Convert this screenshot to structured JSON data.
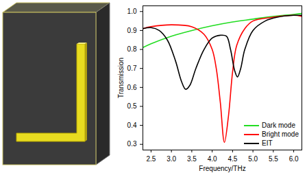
{
  "chart_data": {
    "type": "line",
    "x_label": "Frequency/THz",
    "y_label": "Transmission",
    "xlim": [
      2.3,
      6.2
    ],
    "ylim": [
      0.27,
      1.03
    ],
    "xticks": [
      2.5,
      {
        "value": 3,
        "label": "3.0"
      },
      3.5,
      {
        "value": 4,
        "label": "4.0"
      },
      4.5,
      {
        "value": 5,
        "label": "5.0"
      },
      5.5,
      {
        "value": 6,
        "label": "6.0"
      }
    ],
    "yticks": [
      0.3,
      0.4,
      0.5,
      0.6,
      0.7,
      0.8,
      0.9,
      {
        "value": 1,
        "label": "1.0"
      }
    ],
    "legend": "lower right",
    "series": [
      {
        "name": "Dark mode",
        "color": "#22dd22",
        "x": [
          2.3,
          2.5,
          3.0,
          3.5,
          4.0,
          4.5,
          5.0,
          5.5,
          6.0,
          6.2
        ],
        "values": [
          0.81,
          0.83,
          0.87,
          0.9,
          0.925,
          0.945,
          0.96,
          0.975,
          0.985,
          0.99
        ]
      },
      {
        "name": "Bright mode",
        "color": "#ff0000",
        "x": [
          2.3,
          2.5,
          3.0,
          3.5,
          3.8,
          4.0,
          4.1,
          4.2,
          4.3,
          4.4,
          4.5,
          4.6,
          4.8,
          5.0,
          5.5,
          6.0,
          6.2
        ],
        "values": [
          0.91,
          0.92,
          0.93,
          0.92,
          0.88,
          0.8,
          0.7,
          0.52,
          0.31,
          0.45,
          0.68,
          0.82,
          0.91,
          0.95,
          0.97,
          0.98,
          0.975
        ]
      },
      {
        "name": "EIT",
        "color": "#000000",
        "x": [
          2.3,
          2.5,
          2.7,
          2.9,
          3.1,
          3.25,
          3.35,
          3.45,
          3.6,
          3.8,
          4.0,
          4.2,
          4.35,
          4.45,
          4.55,
          4.62,
          4.7,
          4.8,
          5.0,
          5.3,
          5.6,
          6.0,
          6.2
        ],
        "values": [
          0.91,
          0.915,
          0.9,
          0.85,
          0.74,
          0.63,
          0.59,
          0.61,
          0.7,
          0.8,
          0.86,
          0.875,
          0.87,
          0.8,
          0.69,
          0.655,
          0.7,
          0.8,
          0.9,
          0.95,
          0.97,
          0.98,
          0.98
        ]
      }
    ]
  }
}
